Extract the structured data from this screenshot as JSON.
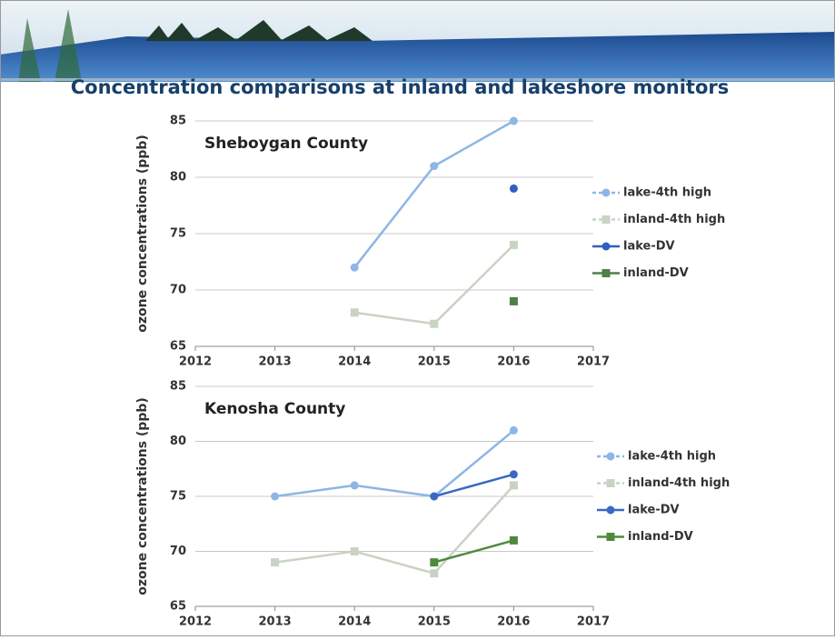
{
  "title": "Concentration comparisons at inland and lakeshore monitors",
  "chart_data": [
    {
      "type": "line",
      "title": "Sheboygan County",
      "y_label": "ozone concentrations (ppb)",
      "x": [
        2014,
        2015,
        2016
      ],
      "series": [
        {
          "name": "lake-4th high",
          "color": "#8db6e6",
          "values": [
            72,
            81,
            85
          ]
        },
        {
          "name": "inland-4th high",
          "color": "#c9d3c3",
          "values": [
            68,
            67,
            74
          ]
        },
        {
          "name": "lake-DV",
          "color": "#2f5fbf",
          "values": [
            null,
            null,
            79
          ]
        },
        {
          "name": "inland-DV",
          "color": "#4f7f4a",
          "values": [
            null,
            null,
            69
          ]
        }
      ],
      "xlim": [
        2012,
        2017
      ],
      "xticks": [
        2012,
        2013,
        2014,
        2015,
        2016,
        2017
      ],
      "ylim": [
        65,
        85
      ],
      "yticks": [
        65,
        70,
        75,
        80,
        85
      ],
      "grid": true,
      "legend": "right"
    },
    {
      "type": "line",
      "title": "Kenosha County",
      "y_label": "ozone concentrations (ppb)",
      "x": [
        2013,
        2014,
        2015,
        2016
      ],
      "series": [
        {
          "name": "lake-4th high",
          "color": "#8db6e6",
          "values": [
            75,
            76,
            75,
            81
          ]
        },
        {
          "name": "inland-4th high",
          "color": "#c9d3c3",
          "values": [
            69,
            70,
            68,
            76
          ]
        },
        {
          "name": "lake-DV",
          "color": "#3a68c4",
          "values": [
            null,
            null,
            75,
            77
          ]
        },
        {
          "name": "inland-DV",
          "color": "#4e8a3e",
          "values": [
            null,
            null,
            69,
            71
          ]
        }
      ],
      "xlim": [
        2012,
        2017
      ],
      "xticks": [
        2012,
        2013,
        2014,
        2015,
        2016,
        2017
      ],
      "ylim": [
        65,
        85
      ],
      "yticks": [
        65,
        70,
        75,
        80,
        85
      ],
      "grid": true,
      "legend": "right"
    }
  ]
}
